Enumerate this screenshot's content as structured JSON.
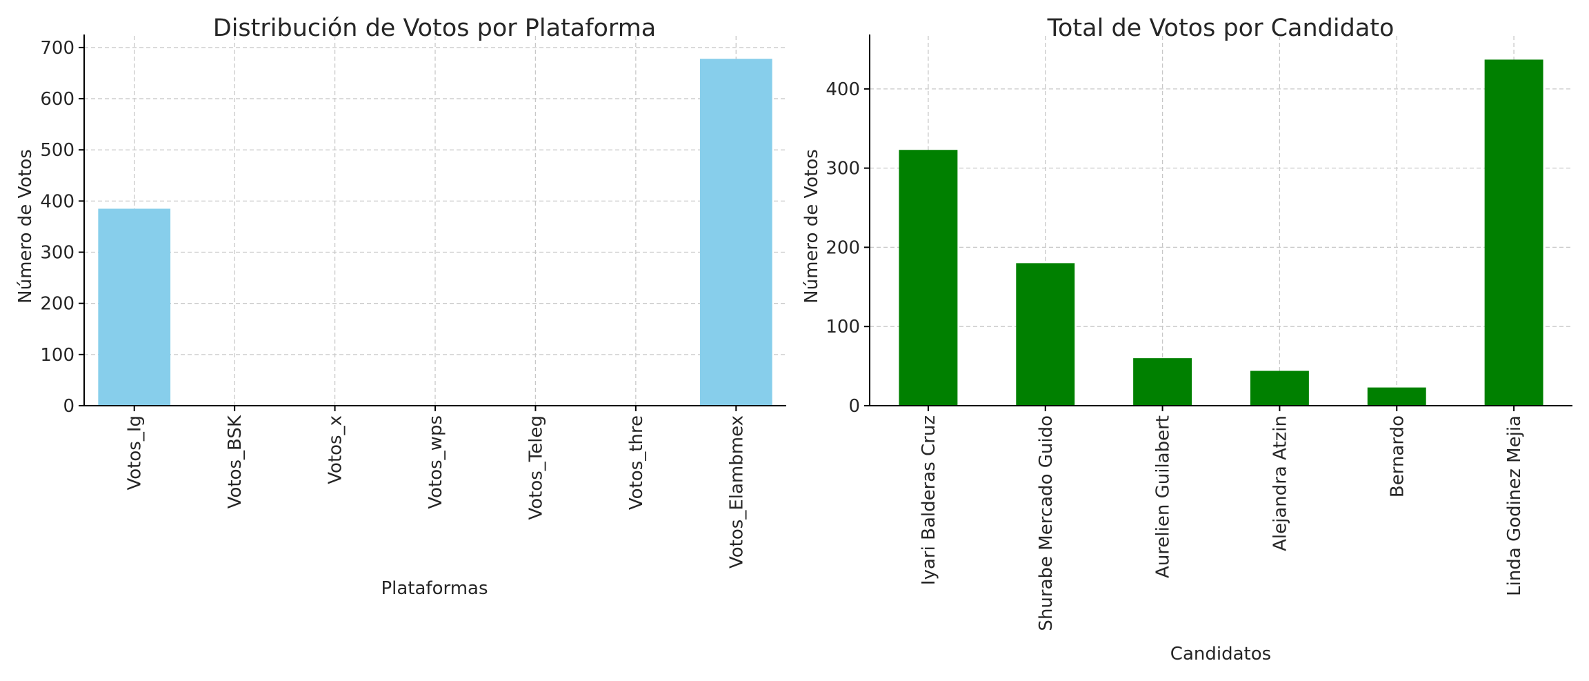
{
  "chart_data": [
    {
      "type": "bar",
      "title": "Distribución de Votos por Plataforma",
      "xlabel": "Plataformas",
      "ylabel": "Número de Votos",
      "categories": [
        "Votos_Ig",
        "Votos_BSK",
        "Votos_x",
        "Votos_wps",
        "Votos_Teleg",
        "Votos_thre",
        "Votos_Elambmex"
      ],
      "values": [
        385,
        0,
        0,
        0,
        0,
        0,
        678
      ],
      "ylim": [
        0,
        712
      ],
      "yticks": [
        0,
        100,
        200,
        300,
        400,
        500,
        600,
        700
      ],
      "color": "#87CEEB",
      "grid": true
    },
    {
      "type": "bar",
      "title": "Total de Votos por Candidato",
      "xlabel": "Candidatos",
      "ylabel": "Número de Votos",
      "categories": [
        "Iyari Balderas Cruz",
        "Shurabe Mercado Guido",
        "Aurelien Guilabert",
        "Alejandra Atzin",
        "Bernardo",
        "Linda Godinez Mejia"
      ],
      "values": [
        323,
        180,
        60,
        44,
        23,
        437
      ],
      "ylim": [
        0,
        460
      ],
      "yticks": [
        0,
        100,
        200,
        300,
        400
      ],
      "color": "#008000",
      "grid": true
    }
  ]
}
